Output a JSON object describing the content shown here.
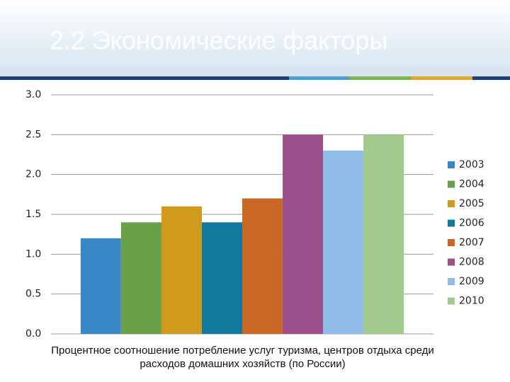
{
  "chart_data": {
    "type": "bar",
    "title": "2.2 Экономические факторы",
    "x_label": "Процентное соотношение потребление услуг туризма, центров отдыха среди расходов домашних хозяйств (по России)",
    "categories": [
      null
    ],
    "series": [
      {
        "name": "2003",
        "color": "#3a87c8",
        "values": [
          1.2
        ]
      },
      {
        "name": "2004",
        "color": "#6a9e48",
        "values": [
          1.4
        ]
      },
      {
        "name": "2005",
        "color": "#d09a1c",
        "values": [
          1.6
        ]
      },
      {
        "name": "2006",
        "color": "#127a9e",
        "values": [
          1.4
        ]
      },
      {
        "name": "2007",
        "color": "#c86824",
        "values": [
          1.7
        ]
      },
      {
        "name": "2008",
        "color": "#9a4e8a",
        "values": [
          2.5
        ]
      },
      {
        "name": "2009",
        "color": "#8fbde8",
        "values": [
          2.3
        ]
      },
      {
        "name": "2010",
        "color": "#a3c98e",
        "values": [
          2.5
        ]
      }
    ],
    "ylim": [
      0,
      3
    ],
    "yticks": [
      {
        "value": 0,
        "label": "0.0"
      },
      {
        "value": 0.5,
        "label": "0.5"
      },
      {
        "value": 1,
        "label": "1.0"
      },
      {
        "value": 1.5,
        "label": "1.5"
      },
      {
        "value": 2,
        "label": "2.0"
      },
      {
        "value": 2.5,
        "label": "2.5"
      },
      {
        "value": 3,
        "label": "3.0"
      }
    ],
    "grid": true,
    "legend": "right"
  }
}
